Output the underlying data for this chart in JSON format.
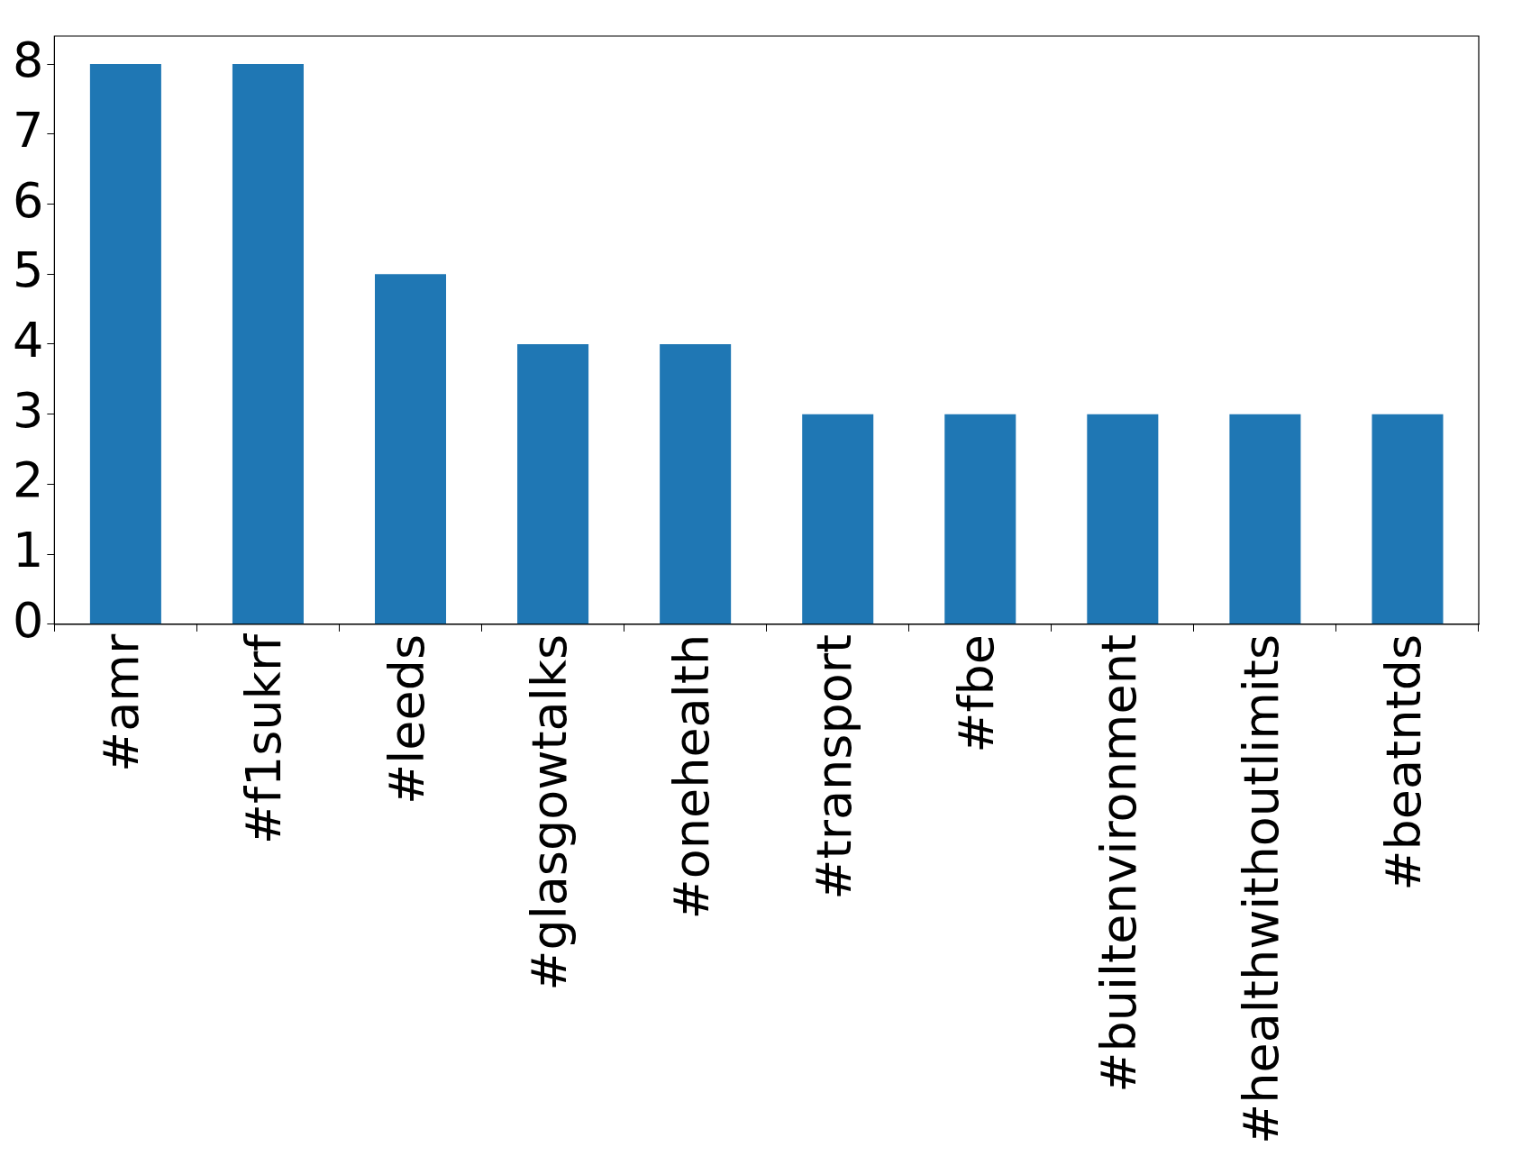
{
  "chart_data": {
    "type": "bar",
    "categories": [
      "#amr",
      "#f1sukrf",
      "#leeds",
      "#glasgowtalks",
      "#onehealth",
      "#transport",
      "#fbe",
      "#builtenvironment",
      "#healthwithoutlimits",
      "#beatntds"
    ],
    "values": [
      8,
      8,
      5,
      4,
      4,
      3,
      3,
      3,
      3,
      3
    ],
    "color": "#1f77b4",
    "ylim": [
      0,
      8.4
    ],
    "yticks": [
      0,
      1,
      2,
      3,
      4,
      5,
      6,
      7,
      8
    ],
    "grid": false,
    "legend": false
  }
}
